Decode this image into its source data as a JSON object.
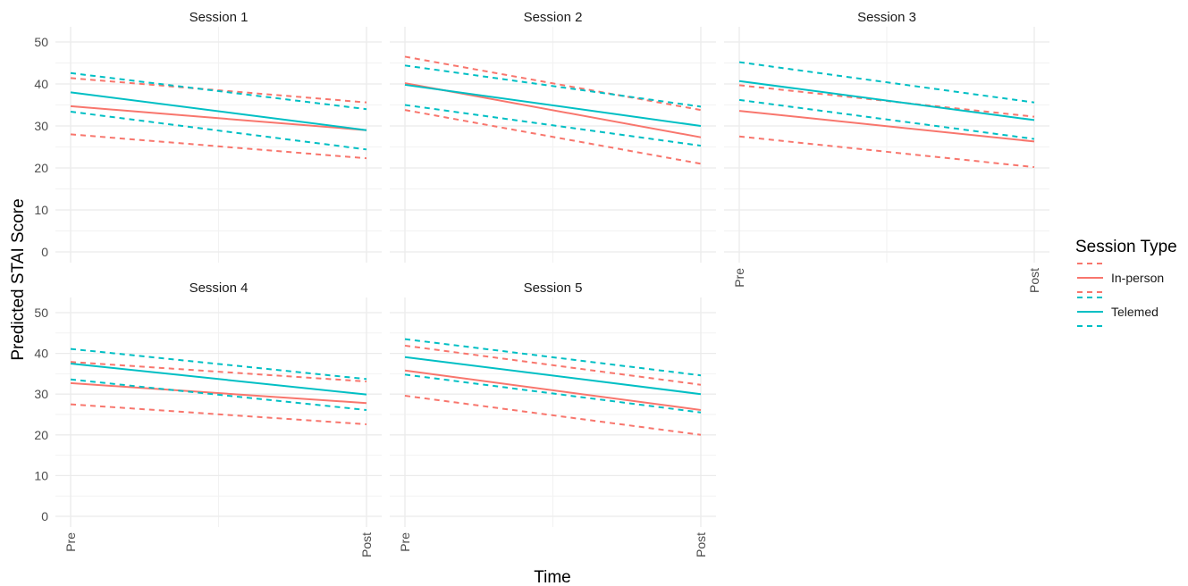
{
  "chart_data": {
    "type": "line",
    "xlabel": "Time",
    "ylabel": "Predicted STAI Score",
    "x": [
      "Pre",
      "Post"
    ],
    "ylim": [
      0,
      50
    ],
    "yticks": [
      0,
      10,
      20,
      30,
      40,
      50
    ],
    "grid": true,
    "legend": {
      "title": "Session Type",
      "placement": "right",
      "entries": [
        {
          "name": "In-person",
          "color": "#F8766D"
        },
        {
          "name": "Telemed",
          "color": "#00BFC4"
        }
      ]
    },
    "panels": [
      {
        "title": "Session 1",
        "series": [
          {
            "name": "In-person",
            "fit": [
              34.7,
              29.0
            ],
            "lower": [
              28.0,
              22.3
            ],
            "upper": [
              41.4,
              35.6
            ]
          },
          {
            "name": "Telemed",
            "fit": [
              38.0,
              29.0
            ],
            "lower": [
              33.4,
              24.4
            ],
            "upper": [
              42.6,
              34.0
            ]
          }
        ]
      },
      {
        "title": "Session 2",
        "series": [
          {
            "name": "In-person",
            "fit": [
              40.2,
              27.3
            ],
            "lower": [
              33.8,
              21.0
            ],
            "upper": [
              46.5,
              33.8
            ]
          },
          {
            "name": "Telemed",
            "fit": [
              39.8,
              30.0
            ],
            "lower": [
              35.0,
              25.3
            ],
            "upper": [
              44.4,
              34.6
            ]
          }
        ]
      },
      {
        "title": "Session 3",
        "series": [
          {
            "name": "In-person",
            "fit": [
              33.6,
              26.3
            ],
            "lower": [
              27.5,
              20.2
            ],
            "upper": [
              39.7,
              32.2
            ]
          },
          {
            "name": "Telemed",
            "fit": [
              40.7,
              31.4
            ],
            "lower": [
              36.2,
              26.9
            ],
            "upper": [
              45.2,
              35.6
            ]
          }
        ]
      },
      {
        "title": "Session 4",
        "series": [
          {
            "name": "In-person",
            "fit": [
              32.7,
              27.8
            ],
            "lower": [
              27.5,
              22.6
            ],
            "upper": [
              37.9,
              33.1
            ]
          },
          {
            "name": "Telemed",
            "fit": [
              37.5,
              29.9
            ],
            "lower": [
              33.6,
              26.1
            ],
            "upper": [
              41.1,
              33.7
            ]
          }
        ]
      },
      {
        "title": "Session 5",
        "series": [
          {
            "name": "In-person",
            "fit": [
              35.8,
              26.1
            ],
            "lower": [
              29.6,
              20.0
            ],
            "upper": [
              41.9,
              32.3
            ]
          },
          {
            "name": "Telemed",
            "fit": [
              39.1,
              30.0
            ],
            "lower": [
              34.8,
              25.5
            ],
            "upper": [
              43.5,
              34.6
            ]
          }
        ]
      }
    ]
  }
}
